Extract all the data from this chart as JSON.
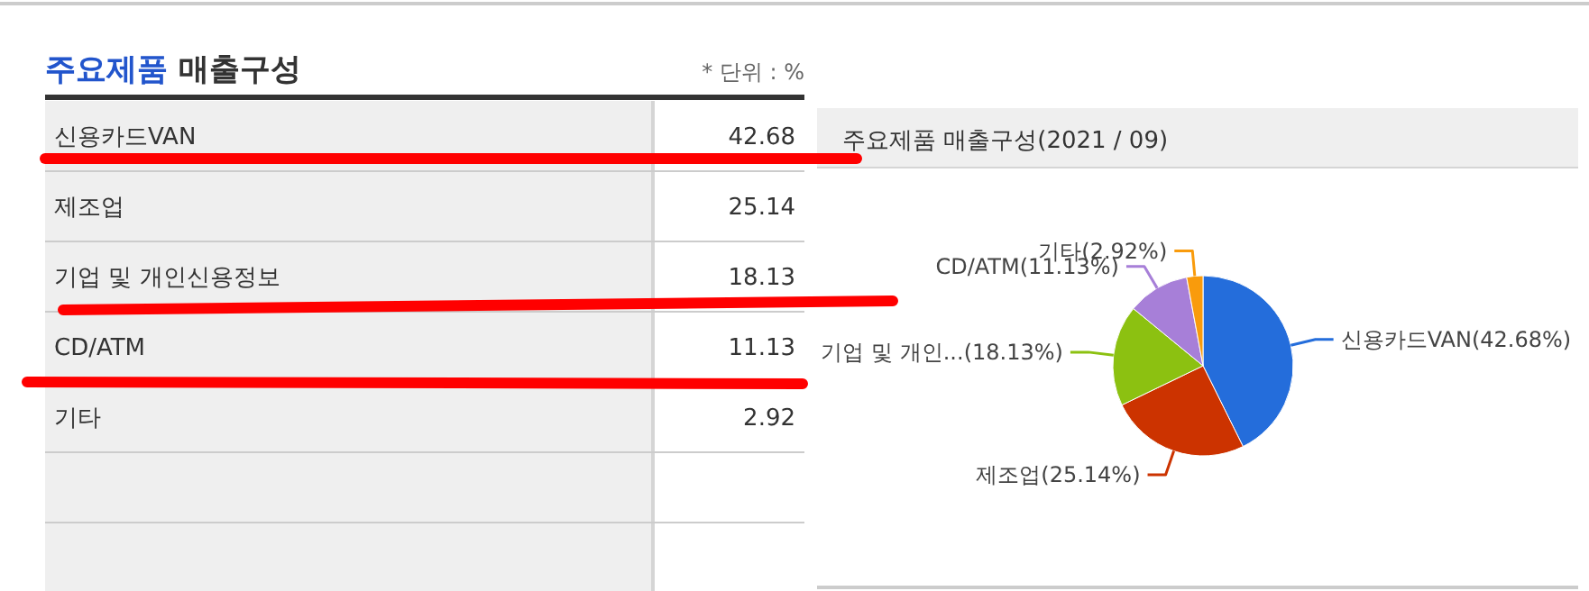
{
  "chart_data": [
    {
      "type": "other",
      "title": "주요제품 매출구성",
      "annotations": [
        "* 단위 : %"
      ],
      "categories": [
        "신용카드VAN",
        "제조업",
        "기업 및 개인신용정보",
        "CD/ATM",
        "기타"
      ],
      "values": [
        42.68,
        25.14,
        18.13,
        11.13,
        2.92
      ],
      "data_labels": true
    },
    {
      "type": "pie",
      "title": "주요제품 매출구성(2021 / 09)",
      "categories": [
        "신용카드VAN",
        "제조업",
        "기업 및 개인...",
        "CD/ATM",
        "기타"
      ],
      "values": [
        42.68,
        25.14,
        18.13,
        11.13,
        2.92
      ],
      "colors": [
        "#246ddb",
        "#cc3300",
        "#8cc111",
        "#a77fd8",
        "#f99b0c"
      ],
      "value_labels": [
        "(42.68%)",
        "(25.14%)",
        "(18.13%)",
        "(11.13%)",
        "(2.92%)"
      ]
    }
  ]
}
